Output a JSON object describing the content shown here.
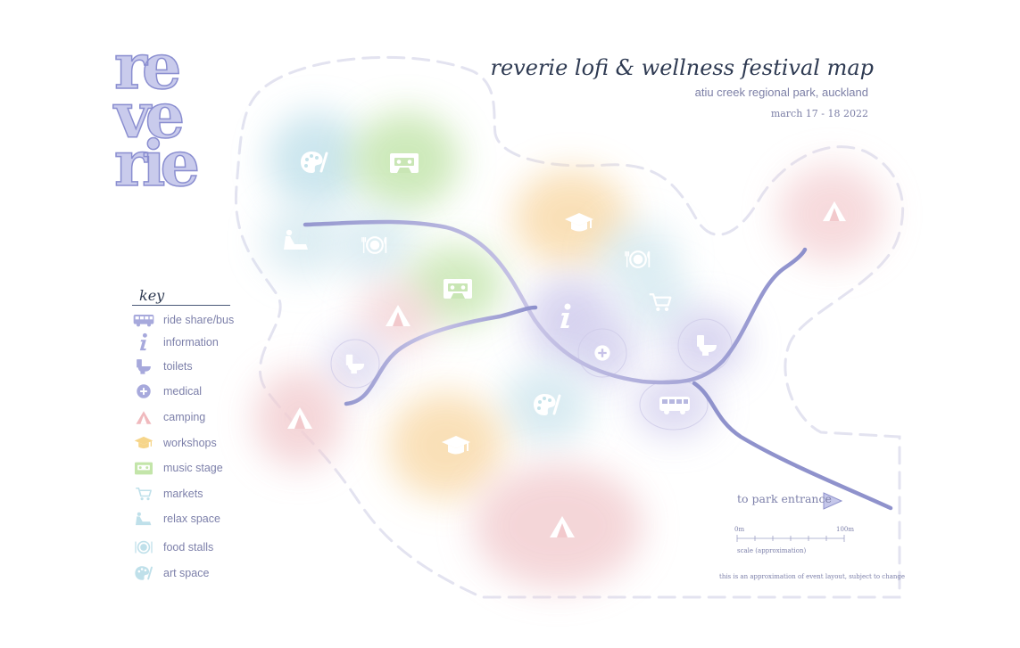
{
  "logo": {
    "lines": [
      "re",
      "ve",
      "rie"
    ]
  },
  "header": {
    "title": "reverie lofi & wellness festival map",
    "subtitle": "atiu creek regional park, auckland",
    "dates": "march 17 - 18 2022"
  },
  "key": {
    "title": "key",
    "items": [
      {
        "icon": "bus-icon",
        "label": "ride share/bus",
        "color": "#9ea0d6"
      },
      {
        "icon": "info-icon",
        "label": "information",
        "color": "#9ea0d6"
      },
      {
        "icon": "toilet-icon",
        "label": "toilets",
        "color": "#9ea0d6"
      },
      {
        "icon": "medical-icon",
        "label": "medical",
        "color": "#9ea0d6"
      },
      {
        "icon": "tent-icon",
        "label": "camping",
        "color": "#f0b5b9"
      },
      {
        "icon": "graduation-cap-icon",
        "label": "workshops",
        "color": "#f6d88c"
      },
      {
        "icon": "cassette-icon",
        "label": "music stage",
        "color": "#bfe3a6"
      },
      {
        "icon": "cart-icon",
        "label": "markets",
        "color": "#bde2ea"
      },
      {
        "icon": "lounge-icon",
        "label": "relax space",
        "color": "#bde2ea"
      },
      {
        "icon": "food-icon",
        "label": "food stalls",
        "color": "#bde2ea"
      },
      {
        "icon": "palette-icon",
        "label": "art space",
        "color": "#bde2ea"
      }
    ]
  },
  "entrance": {
    "label": "to park entrance"
  },
  "scale": {
    "start_label": "0m",
    "end_label": "100m",
    "note": "scale (approximation)"
  },
  "disclaimer": "this is an approximation of event layout, subject to change"
}
